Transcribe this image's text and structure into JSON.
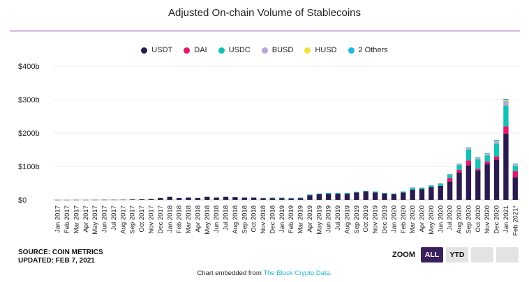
{
  "header": {
    "title": "Adjusted On-chain Volume of Stablecoins"
  },
  "legend": [
    {
      "name": "USDT",
      "color": "#2a1a4e"
    },
    {
      "name": "DAI",
      "color": "#e6176a"
    },
    {
      "name": "USDC",
      "color": "#14c2b3"
    },
    {
      "name": "BUSD",
      "color": "#b6a7d8"
    },
    {
      "name": "HUSD",
      "color": "#f3e03b"
    },
    {
      "name": "2 Others",
      "color": "#1fb7e0"
    }
  ],
  "chart_data": {
    "type": "bar",
    "stacked": true,
    "title": "Adjusted On-chain Volume of Stablecoins",
    "ylim": [
      0,
      400
    ],
    "yticks": [
      "$0",
      "$100b",
      "$200b",
      "$300b",
      "$400b"
    ],
    "ytick_values": [
      0,
      100,
      200,
      300,
      400
    ],
    "grid": true,
    "legend_position": "top-center",
    "categories": [
      "Jan 2017",
      "Feb 2017",
      "Mar 2017",
      "Apr 2017",
      "May 2017",
      "Jun 2017",
      "Jul 2017",
      "Aug 2017",
      "Sep 2017",
      "Oct 2017",
      "Nov 2017",
      "Dec 2017",
      "Jan 2018",
      "Feb 2018",
      "Mar 2018",
      "Apr 2018",
      "May 2018",
      "Jun 2018",
      "Jul 2018",
      "Aug 2018",
      "Sep 2018",
      "Oct 2018",
      "Nov 2018",
      "Dec 2018",
      "Jan 2019",
      "Feb 2019",
      "Mar 2019",
      "Apr 2019",
      "May 2019",
      "Jun 2019",
      "Jul 2019",
      "Aug 2019",
      "Sep 2019",
      "Oct 2019",
      "Nov 2019",
      "Dec 2019",
      "Jan 2020",
      "Feb 2020",
      "Mar 2020",
      "Apr 2020",
      "May 2020",
      "Jun 2020",
      "Jul 2020",
      "Aug 2020",
      "Sep 2020",
      "Oct 2020",
      "Nov 2020",
      "Dec 2020",
      "Jan 2021",
      "Feb 2021*"
    ],
    "series": [
      {
        "name": "USDT",
        "color": "#2a1a4e",
        "values": [
          0.2,
          0.2,
          0.3,
          0.3,
          0.4,
          0.5,
          0.6,
          0.7,
          1.5,
          1.8,
          2.5,
          6,
          9,
          6,
          7,
          6,
          9,
          7,
          9,
          8,
          7,
          7,
          5,
          5,
          5,
          4,
          5,
          14,
          17,
          18,
          18,
          18,
          22,
          25,
          22,
          19,
          17,
          22,
          30,
          32,
          38,
          42,
          55,
          82,
          103,
          88,
          107,
          120,
          198,
          68
        ]
      },
      {
        "name": "DAI",
        "color": "#e6176a",
        "values": [
          0,
          0,
          0,
          0,
          0,
          0,
          0,
          0,
          0,
          0,
          0,
          0,
          0,
          0,
          0,
          0,
          0,
          0,
          0,
          0,
          0,
          0,
          0,
          0,
          0,
          0,
          0,
          0,
          0,
          0,
          0,
          0,
          0,
          0,
          0,
          0,
          0,
          0,
          0,
          0,
          0,
          0,
          10,
          8,
          15,
          5,
          8,
          10,
          22,
          18
        ]
      },
      {
        "name": "USDC",
        "color": "#14c2b3",
        "values": [
          0,
          0,
          0,
          0,
          0,
          0,
          0,
          0,
          0,
          0,
          0,
          0,
          0,
          0,
          0,
          0,
          0,
          0,
          0,
          0,
          0,
          0,
          1,
          2,
          2,
          2,
          2,
          2,
          2,
          3,
          3,
          3,
          2,
          2,
          3,
          2,
          2,
          3,
          6,
          4,
          5,
          6,
          9,
          14,
          32,
          28,
          18,
          38,
          62,
          15
        ]
      },
      {
        "name": "BUSD",
        "color": "#b6a7d8",
        "values": [
          0,
          0,
          0,
          0,
          0,
          0,
          0,
          0,
          0,
          0,
          0,
          0,
          0,
          0,
          0,
          0,
          0,
          0,
          0,
          0,
          0,
          0,
          0,
          0,
          0,
          0,
          0,
          0,
          0,
          0,
          0,
          0,
          0,
          0,
          0,
          0,
          0,
          0,
          2,
          1,
          1,
          2,
          2,
          3,
          4,
          4,
          4,
          6,
          14,
          5
        ]
      },
      {
        "name": "HUSD",
        "color": "#f3e03b",
        "values": [
          0,
          0,
          0,
          0,
          0,
          0,
          0,
          0,
          0,
          0,
          0,
          0,
          0,
          0,
          0,
          0,
          0,
          0,
          0,
          0,
          0,
          0,
          0,
          0,
          0,
          0,
          0,
          0,
          0,
          0,
          0,
          0,
          0,
          0,
          0,
          0,
          0,
          0,
          0,
          0,
          0,
          0,
          0,
          1,
          1,
          1,
          1,
          2,
          2,
          1
        ]
      },
      {
        "name": "2 Others",
        "color": "#1fb7e0",
        "values": [
          0,
          0,
          0,
          0,
          0,
          0,
          0,
          0,
          0,
          0,
          0,
          0,
          0,
          0,
          0,
          0,
          0,
          0,
          0,
          0,
          0,
          0,
          0,
          0,
          0,
          0,
          0,
          0,
          0,
          0,
          0,
          0,
          0,
          0,
          0,
          0,
          0,
          0,
          0,
          0,
          0,
          0,
          1,
          1,
          2,
          2,
          2,
          3,
          4,
          2
        ]
      }
    ]
  },
  "footer": {
    "source": "SOURCE: COIN METRICS",
    "updated": "UPDATED: FEB 7, 2021",
    "embed_text": "Chart embedded from",
    "embed_link": "The Block Crypto Data."
  },
  "zoom": {
    "label": "ZOOM",
    "buttons": [
      "ALL",
      "YTD",
      "",
      ""
    ],
    "active": "ALL"
  }
}
